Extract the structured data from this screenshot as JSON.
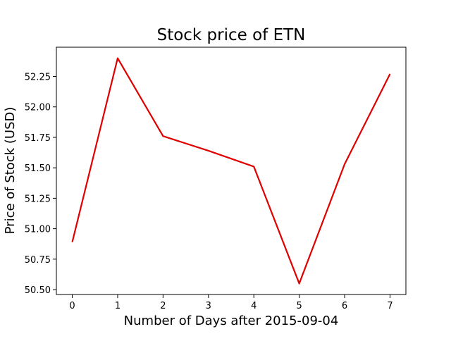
{
  "chart_data": {
    "type": "line",
    "title": "Stock price of ETN",
    "xlabel": "Number of Days after 2015-09-04",
    "ylabel": "Price of Stock (USD)",
    "x": [
      0,
      1,
      2,
      3,
      4,
      5,
      6,
      7
    ],
    "series": [
      {
        "values": [
          50.89,
          52.4,
          51.76,
          51.64,
          51.51,
          50.55,
          51.53,
          52.27
        ],
        "color": "#e00000"
      }
    ],
    "xlim": [
      -0.35,
      7.35
    ],
    "ylim": [
      50.46,
      52.49
    ],
    "xticks": [
      0,
      1,
      2,
      3,
      4,
      5,
      6,
      7
    ],
    "yticks": [
      50.5,
      50.75,
      51.0,
      51.25,
      51.5,
      51.75,
      52.0,
      52.25
    ],
    "ytick_labels": [
      "50.50",
      "50.75",
      "51.00",
      "51.25",
      "51.50",
      "51.75",
      "52.00",
      "52.25"
    ],
    "grid": false,
    "legend": "none"
  }
}
